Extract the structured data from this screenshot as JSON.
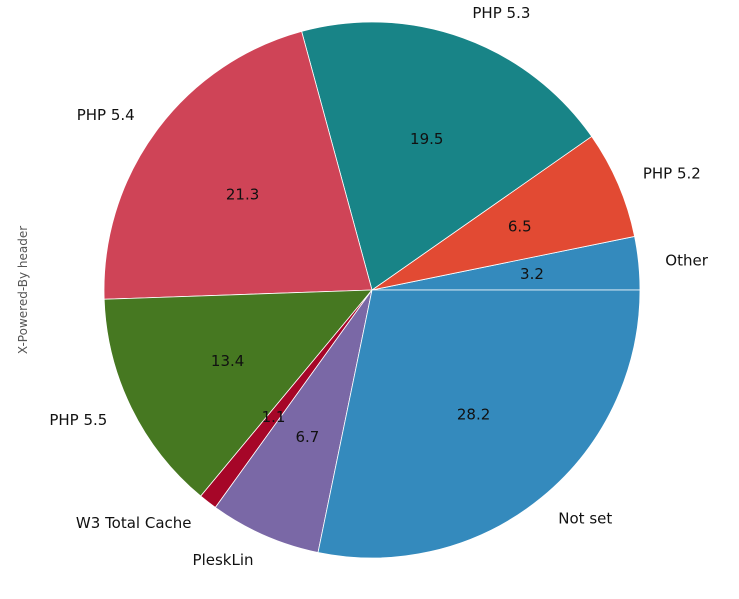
{
  "chart_data": {
    "type": "pie",
    "ylabel": "X-Powered-By header",
    "slices": [
      {
        "label": "Other",
        "value": 3.2,
        "pct_text": "3.2",
        "color": "#348ABD"
      },
      {
        "label": "PHP 5.2",
        "value": 6.5,
        "pct_text": "6.5",
        "color": "#E24A33"
      },
      {
        "label": "PHP 5.3",
        "value": 19.5,
        "pct_text": "19.5",
        "color": "#188487"
      },
      {
        "label": "PHP 5.4",
        "value": 21.3,
        "pct_text": "21.3",
        "color": "#CF4457"
      },
      {
        "label": "PHP 5.5",
        "value": 13.4,
        "pct_text": "13.4",
        "color": "#467821"
      },
      {
        "label": "W3 Total Cache",
        "value": 1.1,
        "pct_text": "1.1",
        "color": "#A60628"
      },
      {
        "label": "PleskLin",
        "value": 6.7,
        "pct_text": "6.7",
        "color": "#7A68A6"
      },
      {
        "label": "Not set",
        "value": 28.2,
        "pct_text": "28.2",
        "color": "#348ABD"
      }
    ]
  }
}
